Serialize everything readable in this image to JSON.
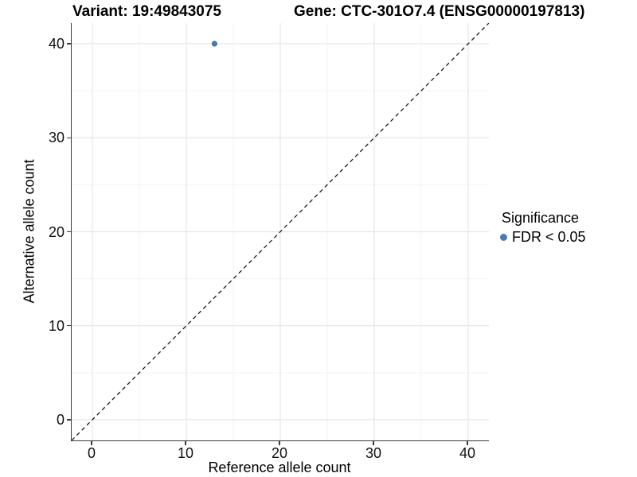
{
  "titles": {
    "variant": "Variant: 19:49843075",
    "gene": "Gene: CTC-301O7.4 (ENSG00000197813)"
  },
  "chart_data": {
    "type": "scatter",
    "title_left": "Variant: 19:49843075",
    "title_right": "Gene: CTC-301O7.4 (ENSG00000197813)",
    "xlabel": "Reference allele count",
    "ylabel": "Alternative allele count",
    "xlim": [
      -2.2,
      42.2
    ],
    "ylim": [
      -2.2,
      42.2
    ],
    "x_ticks": [
      0,
      10,
      20,
      30,
      40
    ],
    "y_ticks": [
      0,
      10,
      20,
      30,
      40
    ],
    "minor_ticks": [
      5,
      15,
      25,
      35
    ],
    "grid": {
      "show": true,
      "major_color": "#e7e7e7",
      "minor_color": "#f3f3f3"
    },
    "reference_line": {
      "type": "identity y = x",
      "style": "dashed",
      "color": "#1a1a1a"
    },
    "series": [
      {
        "name": "FDR < 0.05",
        "color": "#4d7ab0",
        "stroke": "#3a689c",
        "point_radius_px": 3.2,
        "points": [
          [
            13,
            40
          ]
        ]
      }
    ],
    "legend": {
      "title": "Significance",
      "position": "right"
    },
    "axis_color": "#3a3a3a",
    "text_color": "#000000",
    "background": "#ffffff"
  }
}
